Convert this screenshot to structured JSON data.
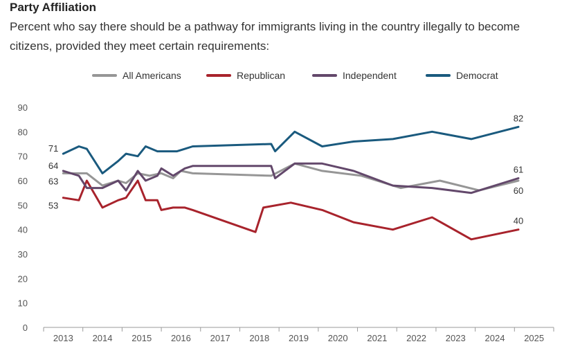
{
  "chart_data": {
    "type": "line",
    "title": "Party Affiliation",
    "subtitle_lines": [
      "Percent who say there should be a pathway for immigrants living in the country illegally to become",
      "citizens, provided they meet certain requirements:"
    ],
    "xlabel": "",
    "ylabel": "",
    "ylim": [
      0,
      90
    ],
    "yticks": [
      0,
      10,
      20,
      30,
      40,
      50,
      60,
      70,
      80,
      90
    ],
    "xlim": [
      2012.5,
      2025.5
    ],
    "xticks": [
      "2013",
      "2014",
      "2015",
      "2016",
      "2017",
      "2018",
      "2019",
      "2020",
      "2021",
      "2022",
      "2023",
      "2024",
      "2025"
    ],
    "grid": false,
    "legend_position": "top-center",
    "series": [
      {
        "name": "All Americans",
        "color": "#969696",
        "points": [
          [
            2013.0,
            63
          ],
          [
            2013.4,
            63
          ],
          [
            2013.6,
            63
          ],
          [
            2014.0,
            58
          ],
          [
            2014.4,
            60
          ],
          [
            2014.6,
            59
          ],
          [
            2014.9,
            63
          ],
          [
            2015.2,
            62
          ],
          [
            2015.5,
            63
          ],
          [
            2015.8,
            61
          ],
          [
            2016.0,
            64
          ],
          [
            2016.3,
            63
          ],
          [
            2018.3,
            62
          ],
          [
            2018.9,
            67
          ],
          [
            2019.6,
            64
          ],
          [
            2020.6,
            62
          ],
          [
            2021.6,
            57
          ],
          [
            2022.6,
            60
          ],
          [
            2023.6,
            56
          ],
          [
            2024.6,
            60
          ]
        ]
      },
      {
        "name": "Republican",
        "color": "#a8232c",
        "points": [
          [
            2013.0,
            53
          ],
          [
            2013.4,
            52
          ],
          [
            2013.6,
            60
          ],
          [
            2014.0,
            49
          ],
          [
            2014.4,
            52
          ],
          [
            2014.6,
            53
          ],
          [
            2014.9,
            60
          ],
          [
            2015.1,
            52
          ],
          [
            2015.4,
            52
          ],
          [
            2015.5,
            48
          ],
          [
            2015.8,
            49
          ],
          [
            2016.1,
            49
          ],
          [
            2016.3,
            48
          ],
          [
            2017.9,
            39
          ],
          [
            2018.1,
            49
          ],
          [
            2018.8,
            51
          ],
          [
            2019.6,
            48
          ],
          [
            2020.4,
            43
          ],
          [
            2021.4,
            40
          ],
          [
            2022.4,
            45
          ],
          [
            2023.4,
            36
          ],
          [
            2024.6,
            40
          ]
        ]
      },
      {
        "name": "Independent",
        "color": "#63486b",
        "points": [
          [
            2013.0,
            64
          ],
          [
            2013.4,
            62
          ],
          [
            2013.6,
            57
          ],
          [
            2014.0,
            57
          ],
          [
            2014.4,
            60
          ],
          [
            2014.6,
            56
          ],
          [
            2014.9,
            64
          ],
          [
            2015.1,
            60
          ],
          [
            2015.4,
            62
          ],
          [
            2015.5,
            65
          ],
          [
            2015.8,
            62
          ],
          [
            2016.1,
            65
          ],
          [
            2016.3,
            66
          ],
          [
            2018.3,
            66
          ],
          [
            2018.4,
            61
          ],
          [
            2018.9,
            67
          ],
          [
            2019.6,
            67
          ],
          [
            2020.4,
            64
          ],
          [
            2021.4,
            58
          ],
          [
            2022.4,
            57
          ],
          [
            2023.4,
            55
          ],
          [
            2024.6,
            61
          ]
        ]
      },
      {
        "name": "Democrat",
        "color": "#1a5a7e",
        "points": [
          [
            2013.0,
            71
          ],
          [
            2013.4,
            74
          ],
          [
            2013.6,
            73
          ],
          [
            2014.0,
            63
          ],
          [
            2014.4,
            68
          ],
          [
            2014.6,
            71
          ],
          [
            2014.9,
            70
          ],
          [
            2015.1,
            74
          ],
          [
            2015.4,
            72
          ],
          [
            2015.9,
            72
          ],
          [
            2016.1,
            73
          ],
          [
            2016.3,
            74
          ],
          [
            2018.3,
            75
          ],
          [
            2018.4,
            72
          ],
          [
            2018.9,
            80
          ],
          [
            2019.6,
            74
          ],
          [
            2020.4,
            76
          ],
          [
            2021.4,
            77
          ],
          [
            2022.4,
            80
          ],
          [
            2023.4,
            77
          ],
          [
            2024.6,
            82
          ]
        ]
      }
    ],
    "data_labels": [
      {
        "text": "71",
        "series": "Democrat",
        "at": [
          2013.0,
          71
        ],
        "side": "left"
      },
      {
        "text": "64",
        "series": "Independent",
        "at": [
          2013.0,
          64
        ],
        "side": "left"
      },
      {
        "text": "63",
        "series": "All Americans",
        "at": [
          2013.0,
          63
        ],
        "side": "left-below"
      },
      {
        "text": "53",
        "series": "Republican",
        "at": [
          2013.0,
          53
        ],
        "side": "left-below"
      },
      {
        "text": "82",
        "series": "Democrat",
        "at": [
          2024.6,
          82
        ],
        "side": "above"
      },
      {
        "text": "61",
        "series": "Independent",
        "at": [
          2024.6,
          61
        ],
        "side": "above"
      },
      {
        "text": "60",
        "series": "All Americans",
        "at": [
          2024.6,
          60
        ],
        "side": "below"
      },
      {
        "text": "40",
        "series": "Republican",
        "at": [
          2024.6,
          40
        ],
        "side": "above"
      }
    ]
  }
}
